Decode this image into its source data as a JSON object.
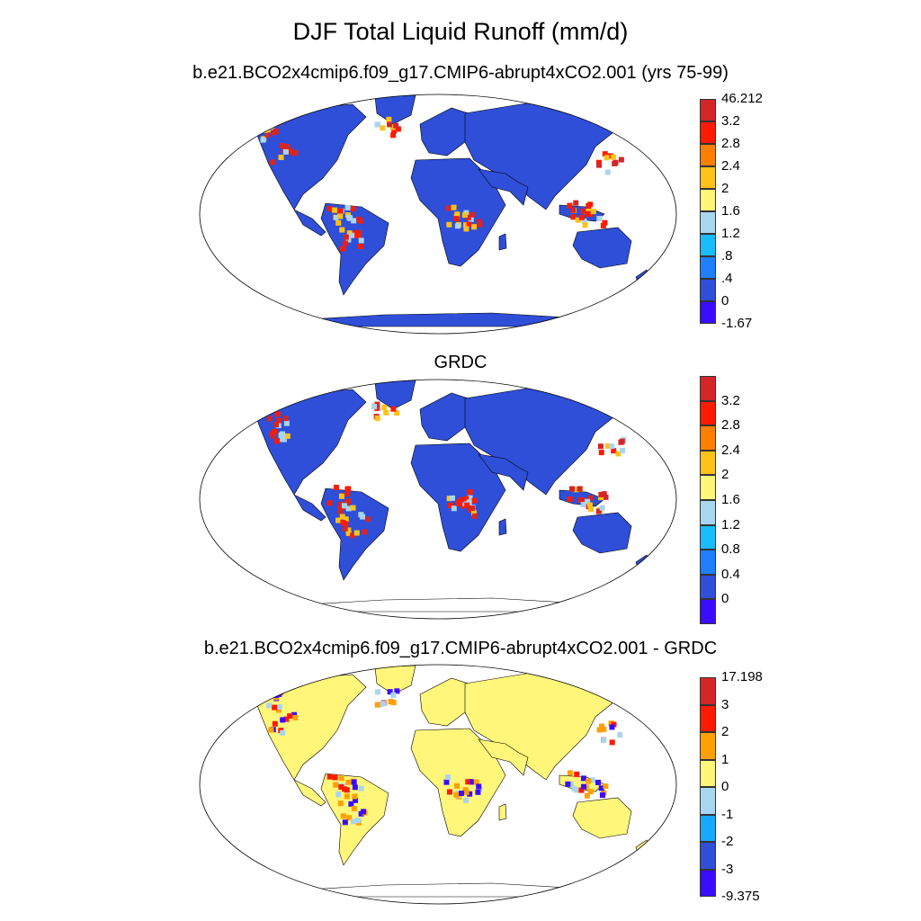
{
  "title": "DJF Total Liquid Runoff (mm/d)",
  "panels": [
    {
      "subtitle": "b.e21.BCO2x4cmip6.f09_g17.CMIP6-abrupt4xCO2.001 (yrs 75-99)",
      "colorbar": {
        "colors": [
          "#3a0dff",
          "#2f4fd8",
          "#1e7fff",
          "#19bcff",
          "#a8d5f0",
          "#fff67a",
          "#ffc21a",
          "#ff7f00",
          "#ff1a00",
          "#d42626"
        ],
        "labels": [
          "-1.67",
          "0",
          ".4",
          ".8",
          "1.2",
          "1.6",
          "2",
          "2.4",
          "2.8",
          "3.2",
          "46.212"
        ],
        "label_mode": "edges"
      }
    },
    {
      "subtitle": "GRDC",
      "colorbar": {
        "colors": [
          "#3a0dff",
          "#2f4fd8",
          "#1e7fff",
          "#19bcff",
          "#a8d5f0",
          "#fff67a",
          "#ffc21a",
          "#ff7f00",
          "#ff1a00",
          "#d42626"
        ],
        "labels": [
          "0",
          "0.4",
          "0.8",
          "1.2",
          "1.6",
          "2",
          "2.4",
          "2.8",
          "3.2"
        ],
        "label_mode": "inner"
      }
    },
    {
      "subtitle": "b.e21.BCO2x4cmip6.f09_g17.CMIP6-abrupt4xCO2.001 - GRDC",
      "colorbar": {
        "colors": [
          "#3a0dff",
          "#2f4fd8",
          "#19a8ff",
          "#a8d5f0",
          "#fff67a",
          "#ffa000",
          "#ff1a00",
          "#d42626"
        ],
        "labels": [
          "-9.375",
          "-3",
          "-2",
          "-1",
          "0",
          "1",
          "2",
          "3",
          "17.198"
        ],
        "label_mode": "edges"
      }
    }
  ]
}
